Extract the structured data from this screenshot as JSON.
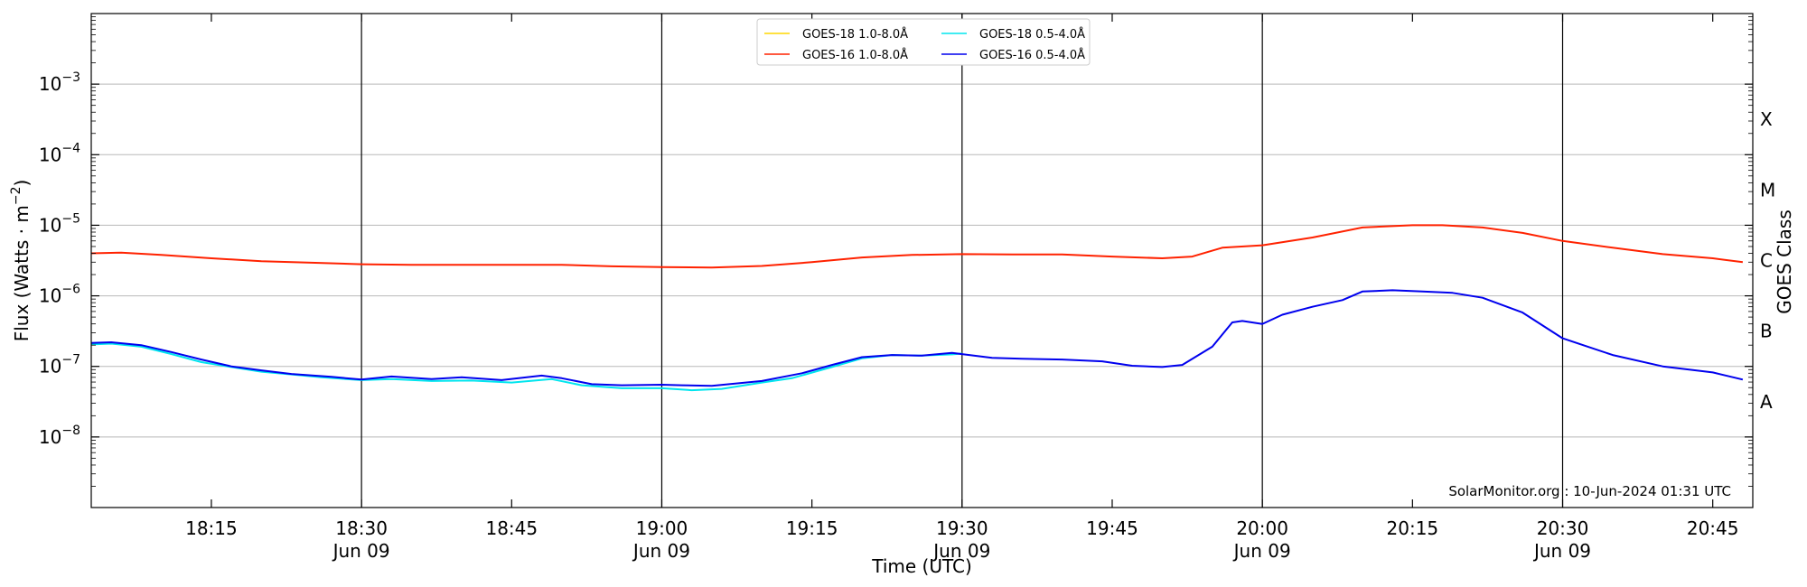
{
  "chart_data": {
    "type": "line",
    "title": "",
    "xlabel": "Time (UTC)",
    "ylabel": "Flux (Watts · m⁻²)",
    "right_axis_label": "GOES Class",
    "y_scale": "log",
    "ylim": [
      1e-09,
      0.01
    ],
    "xlim": [
      "2024-06-09 18:03",
      "2024-06-09 20:49"
    ],
    "x_ticks": [
      {
        "time": "2024-06-09 18:15",
        "label": "18:15",
        "sub": ""
      },
      {
        "time": "2024-06-09 18:30",
        "label": "18:30",
        "sub": "Jun 09"
      },
      {
        "time": "2024-06-09 18:45",
        "label": "18:45",
        "sub": ""
      },
      {
        "time": "2024-06-09 19:00",
        "label": "19:00",
        "sub": "Jun 09"
      },
      {
        "time": "2024-06-09 19:15",
        "label": "19:15",
        "sub": ""
      },
      {
        "time": "2024-06-09 19:30",
        "label": "19:30",
        "sub": "Jun 09"
      },
      {
        "time": "2024-06-09 19:45",
        "label": "19:45",
        "sub": ""
      },
      {
        "time": "2024-06-09 20:00",
        "label": "20:00",
        "sub": "Jun 09"
      },
      {
        "time": "2024-06-09 20:15",
        "label": "20:15",
        "sub": ""
      },
      {
        "time": "2024-06-09 20:30",
        "label": "20:30",
        "sub": "Jun 09"
      },
      {
        "time": "2024-06-09 20:45",
        "label": "20:45",
        "sub": ""
      }
    ],
    "y_ticks": [
      {
        "value": 1e-08,
        "label_base": "10",
        "label_exp": "−8"
      },
      {
        "value": 1e-07,
        "label_base": "10",
        "label_exp": "−7"
      },
      {
        "value": 1e-06,
        "label_base": "10",
        "label_exp": "−6"
      },
      {
        "value": 1e-05,
        "label_base": "10",
        "label_exp": "−5"
      },
      {
        "value": 0.0001,
        "label_base": "10",
        "label_exp": "−4"
      },
      {
        "value": 0.001,
        "label_base": "10",
        "label_exp": "−3"
      }
    ],
    "goes_classes": [
      {
        "label": "A",
        "value": 3.16e-08
      },
      {
        "label": "B",
        "value": 3.16e-07
      },
      {
        "label": "C",
        "value": 3.16e-06
      },
      {
        "label": "M",
        "value": 3.16e-05
      },
      {
        "label": "X",
        "value": 0.000316
      }
    ],
    "day_lines": [
      "2024-06-09 18:30",
      "2024-06-09 19:00",
      "2024-06-09 19:30",
      "2024-06-09 20:00",
      "2024-06-09 20:30"
    ],
    "grid": true,
    "legend_position": "top-center",
    "watermark": "SolarMonitor.org : 10-Jun-2024 01:31 UTC",
    "series": [
      {
        "name": "GOES-18 1.0-8.0Å",
        "color": "#ffd700",
        "points": []
      },
      {
        "name": "GOES-18 0.5-4.0Å",
        "color": "#00e5ee",
        "points": [
          [
            "2024-06-09 18:03",
            2.05e-07
          ],
          [
            "2024-06-09 18:05",
            2.1e-07
          ],
          [
            "2024-06-09 18:08",
            1.9e-07
          ],
          [
            "2024-06-09 18:11",
            1.5e-07
          ],
          [
            "2024-06-09 18:14",
            1.15e-07
          ],
          [
            "2024-06-09 18:17",
            9.8e-08
          ],
          [
            "2024-06-09 18:20",
            8.4e-08
          ],
          [
            "2024-06-09 18:23",
            7.7e-08
          ],
          [
            "2024-06-09 18:26",
            7e-08
          ],
          [
            "2024-06-09 18:30",
            6.4e-08
          ],
          [
            "2024-06-09 18:33",
            6.6e-08
          ],
          [
            "2024-06-09 18:37",
            6.2e-08
          ],
          [
            "2024-06-09 18:41",
            6.3e-08
          ],
          [
            "2024-06-09 18:45",
            5.9e-08
          ],
          [
            "2024-06-09 18:49",
            6.6e-08
          ],
          [
            "2024-06-09 18:52",
            5.4e-08
          ],
          [
            "2024-06-09 18:56",
            4.9e-08
          ],
          [
            "2024-06-09 19:00",
            4.9e-08
          ],
          [
            "2024-06-09 19:03",
            4.6e-08
          ],
          [
            "2024-06-09 19:06",
            4.8e-08
          ],
          [
            "2024-06-09 19:10",
            5.9e-08
          ],
          [
            "2024-06-09 19:13",
            6.8e-08
          ],
          [
            "2024-06-09 19:17",
            9.8e-08
          ],
          [
            "2024-06-09 19:20",
            1.3e-07
          ],
          [
            "2024-06-09 19:23",
            1.45e-07
          ],
          [
            "2024-06-09 19:26",
            1.42e-07
          ],
          [
            "2024-06-09 19:29",
            1.48e-07
          ],
          [
            "2024-06-09 19:30",
            1.52e-07
          ]
        ]
      },
      {
        "name": "GOES-16 1.0-8.0Å",
        "color": "#ff2200",
        "points": [
          [
            "2024-06-09 18:03",
            4e-06
          ],
          [
            "2024-06-09 18:06",
            4.1e-06
          ],
          [
            "2024-06-09 18:10",
            3.8e-06
          ],
          [
            "2024-06-09 18:15",
            3.4e-06
          ],
          [
            "2024-06-09 18:20",
            3.1e-06
          ],
          [
            "2024-06-09 18:25",
            2.95e-06
          ],
          [
            "2024-06-09 18:30",
            2.8e-06
          ],
          [
            "2024-06-09 18:35",
            2.75e-06
          ],
          [
            "2024-06-09 18:40",
            2.75e-06
          ],
          [
            "2024-06-09 18:45",
            2.75e-06
          ],
          [
            "2024-06-09 18:50",
            2.75e-06
          ],
          [
            "2024-06-09 18:55",
            2.62e-06
          ],
          [
            "2024-06-09 19:00",
            2.55e-06
          ],
          [
            "2024-06-09 19:05",
            2.52e-06
          ],
          [
            "2024-06-09 19:10",
            2.65e-06
          ],
          [
            "2024-06-09 19:15",
            3e-06
          ],
          [
            "2024-06-09 19:20",
            3.5e-06
          ],
          [
            "2024-06-09 19:25",
            3.8e-06
          ],
          [
            "2024-06-09 19:30",
            3.9e-06
          ],
          [
            "2024-06-09 19:35",
            3.85e-06
          ],
          [
            "2024-06-09 19:40",
            3.85e-06
          ],
          [
            "2024-06-09 19:45",
            3.6e-06
          ],
          [
            "2024-06-09 19:50",
            3.4e-06
          ],
          [
            "2024-06-09 19:53",
            3.6e-06
          ],
          [
            "2024-06-09 19:56",
            4.8e-06
          ],
          [
            "2024-06-09 20:00",
            5.2e-06
          ],
          [
            "2024-06-09 20:05",
            6.7e-06
          ],
          [
            "2024-06-09 20:10",
            9.3e-06
          ],
          [
            "2024-06-09 20:15",
            1e-05
          ],
          [
            "2024-06-09 20:18",
            1e-05
          ],
          [
            "2024-06-09 20:22",
            9.3e-06
          ],
          [
            "2024-06-09 20:26",
            7.8e-06
          ],
          [
            "2024-06-09 20:30",
            6e-06
          ],
          [
            "2024-06-09 20:35",
            4.8e-06
          ],
          [
            "2024-06-09 20:40",
            3.9e-06
          ],
          [
            "2024-06-09 20:45",
            3.4e-06
          ],
          [
            "2024-06-09 20:48",
            3e-06
          ]
        ]
      },
      {
        "name": "GOES-16 0.5-4.0Å",
        "color": "#0000ee",
        "points": [
          [
            "2024-06-09 18:03",
            2.15e-07
          ],
          [
            "2024-06-09 18:05",
            2.2e-07
          ],
          [
            "2024-06-09 18:08",
            2e-07
          ],
          [
            "2024-06-09 18:11",
            1.6e-07
          ],
          [
            "2024-06-09 18:14",
            1.25e-07
          ],
          [
            "2024-06-09 18:17",
            1e-07
          ],
          [
            "2024-06-09 18:20",
            8.8e-08
          ],
          [
            "2024-06-09 18:23",
            7.8e-08
          ],
          [
            "2024-06-09 18:27",
            7.1e-08
          ],
          [
            "2024-06-09 18:30",
            6.5e-08
          ],
          [
            "2024-06-09 18:33",
            7.2e-08
          ],
          [
            "2024-06-09 18:37",
            6.6e-08
          ],
          [
            "2024-06-09 18:40",
            7e-08
          ],
          [
            "2024-06-09 18:44",
            6.4e-08
          ],
          [
            "2024-06-09 18:48",
            7.4e-08
          ],
          [
            "2024-06-09 18:50",
            6.8e-08
          ],
          [
            "2024-06-09 18:53",
            5.6e-08
          ],
          [
            "2024-06-09 18:56",
            5.4e-08
          ],
          [
            "2024-06-09 19:00",
            5.5e-08
          ],
          [
            "2024-06-09 19:02",
            5.4e-08
          ],
          [
            "2024-06-09 19:05",
            5.3e-08
          ],
          [
            "2024-06-09 19:10",
            6.2e-08
          ],
          [
            "2024-06-09 19:14",
            8e-08
          ],
          [
            "2024-06-09 19:17",
            1.05e-07
          ],
          [
            "2024-06-09 19:20",
            1.35e-07
          ],
          [
            "2024-06-09 19:23",
            1.45e-07
          ],
          [
            "2024-06-09 19:26",
            1.42e-07
          ],
          [
            "2024-06-09 19:29",
            1.55e-07
          ],
          [
            "2024-06-09 19:33",
            1.32e-07
          ],
          [
            "2024-06-09 19:36",
            1.28e-07
          ],
          [
            "2024-06-09 19:40",
            1.25e-07
          ],
          [
            "2024-06-09 19:44",
            1.18e-07
          ],
          [
            "2024-06-09 19:47",
            1.02e-07
          ],
          [
            "2024-06-09 19:50",
            9.8e-08
          ],
          [
            "2024-06-09 19:52",
            1.05e-07
          ],
          [
            "2024-06-09 19:55",
            1.9e-07
          ],
          [
            "2024-06-09 19:57",
            4.2e-07
          ],
          [
            "2024-06-09 19:58",
            4.4e-07
          ],
          [
            "2024-06-09 20:00",
            4e-07
          ],
          [
            "2024-06-09 20:02",
            5.4e-07
          ],
          [
            "2024-06-09 20:05",
            7e-07
          ],
          [
            "2024-06-09 20:08",
            8.7e-07
          ],
          [
            "2024-06-09 20:10",
            1.15e-06
          ],
          [
            "2024-06-09 20:13",
            1.2e-06
          ],
          [
            "2024-06-09 20:16",
            1.15e-06
          ],
          [
            "2024-06-09 20:19",
            1.1e-06
          ],
          [
            "2024-06-09 20:22",
            9.4e-07
          ],
          [
            "2024-06-09 20:26",
            5.8e-07
          ],
          [
            "2024-06-09 20:30",
            2.5e-07
          ],
          [
            "2024-06-09 20:35",
            1.45e-07
          ],
          [
            "2024-06-09 20:40",
            1e-07
          ],
          [
            "2024-06-09 20:45",
            8.2e-08
          ],
          [
            "2024-06-09 20:48",
            6.5e-08
          ]
        ]
      }
    ]
  }
}
